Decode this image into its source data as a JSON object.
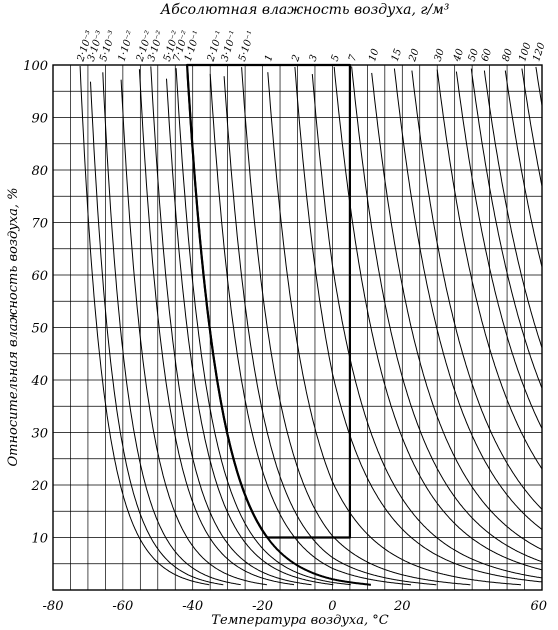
{
  "chart_data": {
    "type": "line",
    "title": "Абсолютная влажность воздуха, г/м³",
    "xlabel": "Температура воздуха, °C",
    "ylabel": "Относительная влажность воздуха, %",
    "xlim": [
      -80,
      60
    ],
    "ylim": [
      0,
      100
    ],
    "grid": true,
    "x_tick_labels": [
      "-80",
      "-60",
      "-40",
      "-20",
      "0",
      "20",
      "60"
    ],
    "y_tick_labels": [
      "10",
      "20",
      "30",
      "40",
      "50",
      "60",
      "70",
      "80",
      "90",
      "100"
    ],
    "curve_labels": [
      "2·10⁻³",
      "3·10⁻³",
      "5·10⁻³",
      "1·10⁻²",
      "2·10⁻²",
      "3·10⁻²",
      "5·10⁻²",
      "7·10⁻²",
      "1·10⁻¹",
      "2·10⁻¹",
      "3·10⁻¹",
      "5·10⁻¹",
      "1",
      "2",
      "3",
      "5",
      "7",
      "10",
      "15",
      "20",
      "30",
      "40",
      "50",
      "60",
      "80",
      "100",
      "120"
    ],
    "series": [
      {
        "label": "2·10⁻³",
        "absolute_humidity": 0.002
      },
      {
        "label": "3·10⁻³",
        "absolute_humidity": 0.003
      },
      {
        "label": "5·10⁻³",
        "absolute_humidity": 0.005
      },
      {
        "label": "1·10⁻²",
        "absolute_humidity": 0.01
      },
      {
        "label": "2·10⁻²",
        "absolute_humidity": 0.02
      },
      {
        "label": "3·10⁻²",
        "absolute_humidity": 0.03
      },
      {
        "label": "5·10⁻²",
        "absolute_humidity": 0.05
      },
      {
        "label": "7·10⁻²",
        "absolute_humidity": 0.07
      },
      {
        "label": "1·10⁻¹",
        "absolute_humidity": 0.1
      },
      {
        "label": "2·10⁻¹",
        "absolute_humidity": 0.2
      },
      {
        "label": "3·10⁻¹",
        "absolute_humidity": 0.3
      },
      {
        "label": "5·10⁻¹",
        "absolute_humidity": 0.5
      },
      {
        "label": "1",
        "absolute_humidity": 1
      },
      {
        "label": "2",
        "absolute_humidity": 2
      },
      {
        "label": "3",
        "absolute_humidity": 3
      },
      {
        "label": "5",
        "absolute_humidity": 5
      },
      {
        "label": "7",
        "absolute_humidity": 7
      },
      {
        "label": "10",
        "absolute_humidity": 10
      },
      {
        "label": "15",
        "absolute_humidity": 15
      },
      {
        "label": "20",
        "absolute_humidity": 20
      },
      {
        "label": "30",
        "absolute_humidity": 30
      },
      {
        "label": "40",
        "absolute_humidity": 40
      },
      {
        "label": "50",
        "absolute_humidity": 50
      },
      {
        "label": "60",
        "absolute_humidity": 60
      },
      {
        "label": "80",
        "absolute_humidity": 80
      },
      {
        "label": "100",
        "absolute_humidity": 100
      },
      {
        "label": "120",
        "absolute_humidity": 120
      }
    ],
    "highlighted_region": {
      "boundary_curve": "1·10⁻¹",
      "t_right": 5,
      "rh_bottom": 10,
      "rh_top": 100
    }
  }
}
